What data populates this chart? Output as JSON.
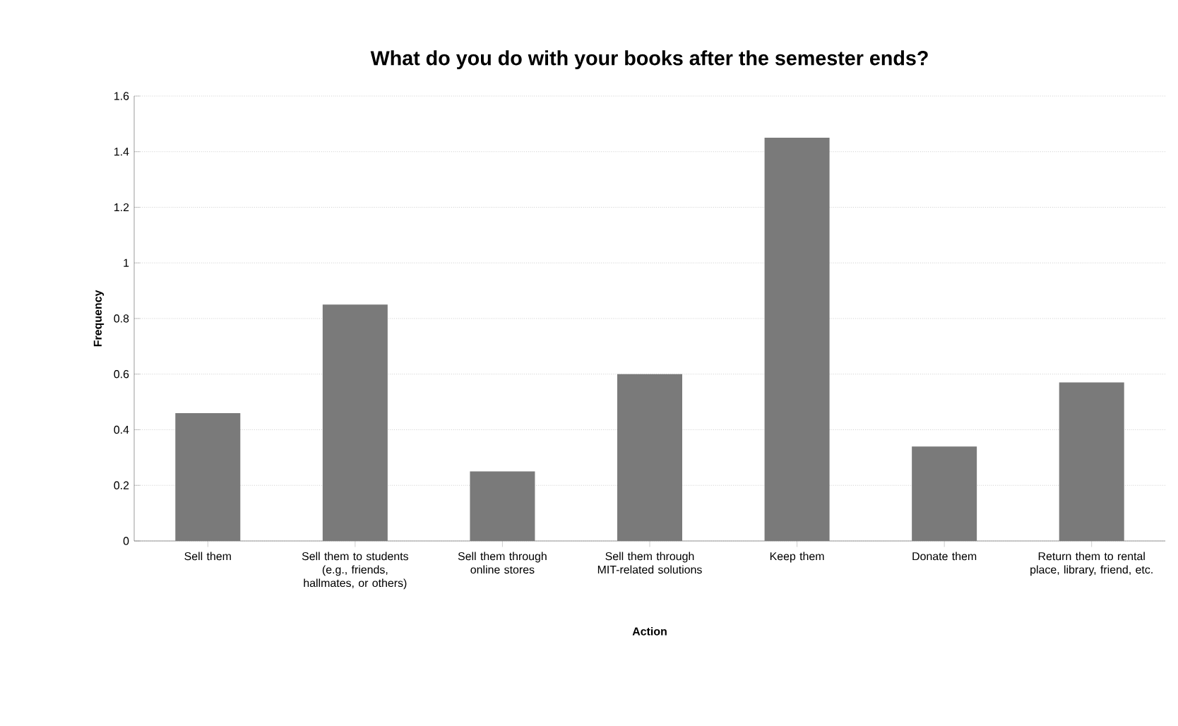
{
  "chart_data": {
    "type": "bar",
    "title": "What do you do with your books after the semester ends?",
    "xlabel": "Action",
    "ylabel": "Frequency",
    "categories": [
      "Sell them",
      "Sell them to students (e.g., friends, hallmates, or others)",
      "Sell them through online stores",
      "Sell them through MIT-related solutions",
      "Keep them",
      "Donate them",
      "Return them to rental place, library, friend, etc."
    ],
    "values": [
      0.46,
      0.85,
      0.25,
      0.6,
      1.45,
      0.34,
      0.57
    ],
    "color": "#7a7a7a",
    "ylim": [
      0,
      1.6
    ],
    "yticks": [
      0,
      0.2,
      0.4,
      0.6,
      0.8,
      1,
      1.2,
      1.4,
      1.6
    ],
    "grid": "y"
  }
}
